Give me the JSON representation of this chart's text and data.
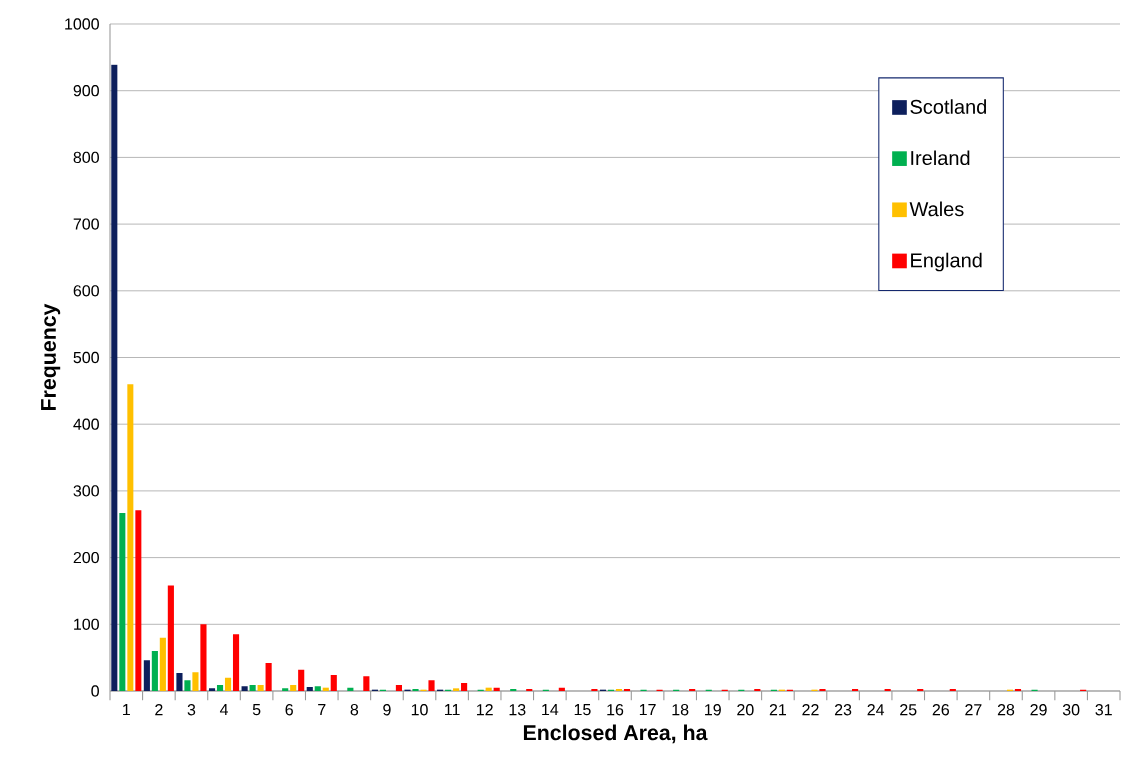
{
  "chart_data": {
    "type": "bar",
    "xlabel": "Enclosed Area, ha",
    "ylabel": "Frequency",
    "categories": [
      "1",
      "2",
      "3",
      "4",
      "5",
      "6",
      "7",
      "8",
      "9",
      "10",
      "11",
      "12",
      "13",
      "14",
      "15",
      "16",
      "17",
      "18",
      "19",
      "20",
      "21",
      "22",
      "23",
      "24",
      "25",
      "26",
      "27",
      "28",
      "29",
      "30",
      "31"
    ],
    "series": [
      {
        "name": "Scotland",
        "color": "#0d1f5c",
        "values": [
          939,
          46,
          27,
          4,
          7,
          0,
          6,
          0,
          2,
          2,
          2,
          0,
          0,
          0,
          0,
          2,
          0,
          0,
          0,
          0,
          0,
          0,
          0,
          0,
          0,
          0,
          0,
          0,
          0,
          0,
          0
        ]
      },
      {
        "name": "Ireland",
        "color": "#00b050",
        "values": [
          267,
          60,
          16,
          9,
          9,
          4,
          7,
          5,
          2,
          3,
          2,
          2,
          3,
          2,
          0,
          2,
          2,
          2,
          2,
          2,
          2,
          0,
          0,
          0,
          0,
          0,
          0,
          0,
          2,
          0,
          0
        ]
      },
      {
        "name": "Wales",
        "color": "#ffc000",
        "values": [
          460,
          80,
          28,
          20,
          9,
          9,
          5,
          0,
          0,
          2,
          4,
          5,
          0,
          0,
          0,
          3,
          0,
          0,
          0,
          0,
          2,
          2,
          0,
          0,
          0,
          0,
          0,
          2,
          0,
          0,
          0
        ]
      },
      {
        "name": "England",
        "color": "#ff0000",
        "values": [
          271,
          158,
          100,
          85,
          42,
          32,
          24,
          22,
          9,
          16,
          12,
          5,
          3,
          5,
          3,
          3,
          2,
          3,
          2,
          3,
          2,
          3,
          3,
          3,
          3,
          3,
          0,
          3,
          0,
          2,
          0
        ]
      }
    ],
    "ylim": [
      0,
      1000
    ],
    "yticks": [
      0,
      100,
      200,
      300,
      400,
      500,
      600,
      700,
      800,
      900,
      1000
    ],
    "grid": "y",
    "legend": "top right"
  }
}
